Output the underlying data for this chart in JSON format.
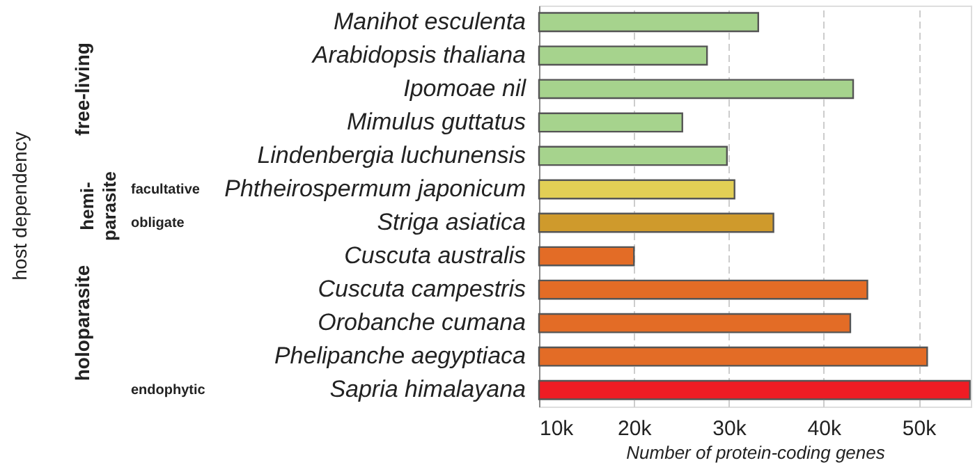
{
  "chart_data": {
    "type": "bar",
    "orientation": "horizontal",
    "xlabel": "Number of protein-coding genes",
    "categories": [
      "Manihot esculenta",
      "Arabidopsis thaliana",
      "Ipomoae nil",
      "Mimulus guttatus",
      "Lindenbergia luchunensis",
      "Phtheirospermum japonicum",
      "Striga asiatica",
      "Cuscuta australis",
      "Cuscuta campestris",
      "Orobanche cumana",
      "Phelipanche aegyptiaca",
      "Sapria himalayana"
    ],
    "values": [
      33100,
      27700,
      43100,
      25100,
      29800,
      30600,
      34700,
      20000,
      44600,
      42800,
      50900,
      55400
    ],
    "colors": [
      "#a6d38d",
      "#a6d38d",
      "#a6d38d",
      "#a6d38d",
      "#a6d38d",
      "#e2cf55",
      "#cf9a2c",
      "#e36c26",
      "#e36c26",
      "#e36c26",
      "#e36c26",
      "#ee1c24"
    ],
    "xlim": [
      10000,
      55500
    ],
    "xticks": [
      {
        "value": 10000,
        "label": "10k"
      },
      {
        "value": 20000,
        "label": "20k"
      },
      {
        "value": 30000,
        "label": "30k"
      },
      {
        "value": 40000,
        "label": "40k"
      },
      {
        "value": 50000,
        "label": "50k"
      }
    ],
    "grid": "x",
    "annotations": [
      "free-living",
      "hemi-parasite",
      "holoparasite",
      "facultative",
      "obligate",
      "endophytic",
      "host dependency"
    ]
  }
}
